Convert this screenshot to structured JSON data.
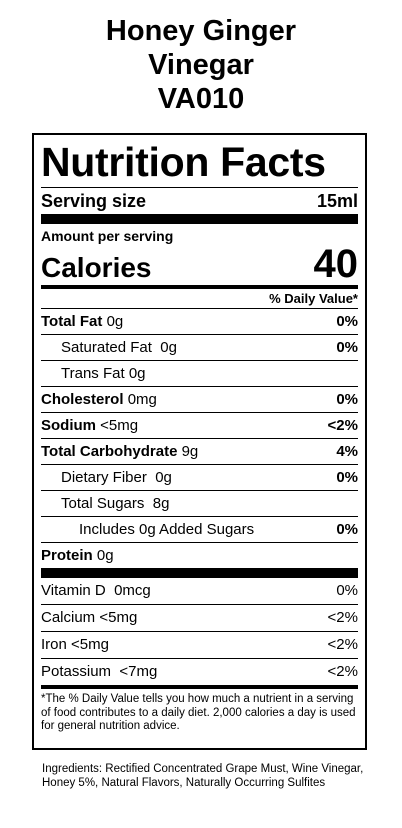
{
  "product": {
    "name_line1": "Honey Ginger",
    "name_line2": "Vinegar",
    "code": "VA010"
  },
  "label": {
    "title": "Nutrition Facts",
    "serving_size_label": "Serving size",
    "serving_size_value": "15ml",
    "amount_per_serving": "Amount per serving",
    "calories_label": "Calories",
    "calories_value": "40",
    "daily_value_header": "% Daily Value*",
    "nutrients": [
      {
        "label": "Total Fat",
        "amount": "0g",
        "dv": "0%"
      },
      {
        "label": "Saturated Fat",
        "amount": "0g",
        "dv": "0%"
      },
      {
        "label": "Trans Fat",
        "amount": "0g",
        "dv": ""
      },
      {
        "label": "Cholesterol",
        "amount": "0mg",
        "dv": "0%"
      },
      {
        "label": "Sodium",
        "amount": "<5mg",
        "dv": "<2%"
      },
      {
        "label": "Total Carbohydrate",
        "amount": "9g",
        "dv": "4%"
      },
      {
        "label": "Dietary Fiber",
        "amount": "0g",
        "dv": "0%"
      },
      {
        "label": "Total Sugars",
        "amount": "8g",
        "dv": ""
      },
      {
        "label": "Includes 0g Added Sugars",
        "amount": "",
        "dv": "0%"
      },
      {
        "label": "Protein",
        "amount": "0g",
        "dv": ""
      }
    ],
    "vitamins": [
      {
        "label": "Vitamin D",
        "amount": "0mcg",
        "dv": "0%"
      },
      {
        "label": "Calcium",
        "amount": "<5mg",
        "dv": "<2%"
      },
      {
        "label": "Iron",
        "amount": "<5mg",
        "dv": "<2%"
      },
      {
        "label": "Potassium",
        "amount": "<7mg",
        "dv": "<2%"
      }
    ],
    "footnote": "*The % Daily Value tells you how much a nutrient in a serving of food contributes to a daily diet. 2,000 calories a day is used for general nutrition advice."
  },
  "ingredients": "Ingredients: Rectified Concentrated Grape Must, Wine Vinegar, Honey 5%, Natural Flavors, Naturally Occurring Sulfites"
}
